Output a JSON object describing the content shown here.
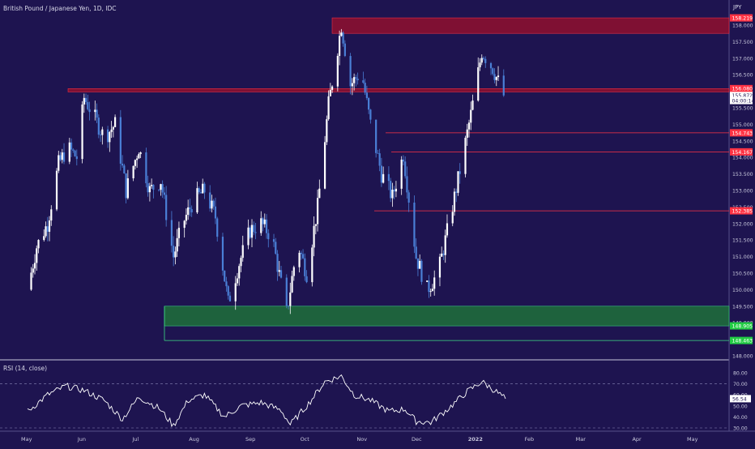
{
  "colors": {
    "background": "#1e1450",
    "candle_up": "#ffffff",
    "candle_down": "#4a7fd6",
    "rsi_line": "#ffffff",
    "resistance_zone": "#8a1030",
    "support_zone": "#1f6b3c",
    "red_line": "#ff3344",
    "green_line": "#3ddc84",
    "axis_text": "#c8c8dc"
  },
  "header": {
    "symbol_title": "British Pound / Japanese Yen, 1D, IDC",
    "currency_unit": "JPY"
  },
  "price_axis": {
    "ticks": [
      "158.000",
      "157.500",
      "157.000",
      "156.500",
      "156.000",
      "155.500",
      "155.000",
      "154.500",
      "154.000",
      "153.500",
      "153.000",
      "152.500",
      "152.000",
      "151.500",
      "151.000",
      "150.500",
      "150.000",
      "149.500",
      "149.000",
      "148.500",
      "148.000"
    ],
    "markers": [
      {
        "label": "158.219",
        "value": 158.219,
        "color": "#ff3344",
        "text": "#ffffff"
      },
      {
        "label": "156.080",
        "value": 156.08,
        "color": "#ff3344",
        "text": "#ffffff"
      },
      {
        "label": "155.872",
        "value": 155.872,
        "color": "#ffffff",
        "text": "#1e1450"
      },
      {
        "label": "04:00:14",
        "value": 155.72,
        "color": "#ffffff",
        "text": "#1e1450"
      },
      {
        "label": "154.743",
        "value": 154.743,
        "color": "#ff3344",
        "text": "#ffffff"
      },
      {
        "label": "154.167",
        "value": 154.167,
        "color": "#ff3344",
        "text": "#ffffff"
      },
      {
        "label": "152.385",
        "value": 152.385,
        "color": "#ff3344",
        "text": "#ffffff"
      },
      {
        "label": "148.905",
        "value": 148.905,
        "color": "#22cc44",
        "text": "#ffffff"
      },
      {
        "label": "148.463",
        "value": 148.463,
        "color": "#22cc44",
        "text": "#ffffff"
      }
    ]
  },
  "rsi": {
    "title": "RSI (14, close)",
    "current_label": "56.54",
    "current_value": 56.54,
    "ticks": [
      "80.00",
      "70.00",
      "60.00",
      "50.00",
      "40.00",
      "30.00"
    ]
  },
  "time_axis": {
    "labels": [
      "May",
      "Jun",
      "Jul",
      "Aug",
      "Sep",
      "Oct",
      "Nov",
      "Dec",
      "2022",
      "Feb",
      "Mar",
      "Apr",
      "May"
    ]
  },
  "chart_data": {
    "type": "candlestick",
    "title": "British Pound / Japanese Yen, 1D, IDC",
    "ylim": [
      148.0,
      158.4
    ],
    "zones": [
      {
        "kind": "resistance",
        "from": 157.75,
        "to": 158.219
      },
      {
        "kind": "resistance",
        "from": 155.98,
        "to": 156.08
      },
      {
        "kind": "support",
        "from": 148.905,
        "to": 149.5
      }
    ],
    "levels": [
      {
        "value": 154.743,
        "kind": "resistance"
      },
      {
        "value": 154.167,
        "kind": "resistance"
      },
      {
        "value": 152.385,
        "kind": "resistance"
      },
      {
        "value": 148.463,
        "kind": "support"
      }
    ],
    "close_path": [
      {
        "x": "2021-05-01",
        "y": 150.0
      },
      {
        "x": "2021-05-06",
        "y": 151.3
      },
      {
        "x": "2021-05-12",
        "y": 152.0
      },
      {
        "x": "2021-05-18",
        "y": 153.8
      },
      {
        "x": "2021-05-23",
        "y": 154.3
      },
      {
        "x": "2021-05-28",
        "y": 154.0
      },
      {
        "x": "2021-06-01",
        "y": 155.8
      },
      {
        "x": "2021-06-06",
        "y": 155.3
      },
      {
        "x": "2021-06-12",
        "y": 154.6
      },
      {
        "x": "2021-06-18",
        "y": 155.0
      },
      {
        "x": "2021-06-24",
        "y": 153.0
      },
      {
        "x": "2021-07-01",
        "y": 154.3
      },
      {
        "x": "2021-07-07",
        "y": 153.0
      },
      {
        "x": "2021-07-13",
        "y": 153.3
      },
      {
        "x": "2021-07-20",
        "y": 151.0
      },
      {
        "x": "2021-07-25",
        "y": 152.0
      },
      {
        "x": "2021-07-31",
        "y": 152.7
      },
      {
        "x": "2021-08-06",
        "y": 153.0
      },
      {
        "x": "2021-08-12",
        "y": 152.2
      },
      {
        "x": "2021-08-19",
        "y": 149.6
      },
      {
        "x": "2021-08-25",
        "y": 150.8
      },
      {
        "x": "2021-08-31",
        "y": 151.8
      },
      {
        "x": "2021-09-06",
        "y": 152.0
      },
      {
        "x": "2021-09-12",
        "y": 151.6
      },
      {
        "x": "2021-09-20",
        "y": 149.3
      },
      {
        "x": "2021-09-26",
        "y": 151.4
      },
      {
        "x": "2021-10-01",
        "y": 150.5
      },
      {
        "x": "2021-10-07",
        "y": 152.5
      },
      {
        "x": "2021-10-13",
        "y": 155.6
      },
      {
        "x": "2021-10-20",
        "y": 158.0
      },
      {
        "x": "2021-10-25",
        "y": 156.2
      },
      {
        "x": "2021-10-31",
        "y": 156.6
      },
      {
        "x": "2021-11-05",
        "y": 155.0
      },
      {
        "x": "2021-11-11",
        "y": 153.5
      },
      {
        "x": "2021-11-17",
        "y": 152.8
      },
      {
        "x": "2021-11-23",
        "y": 154.1
      },
      {
        "x": "2021-11-30",
        "y": 151.0
      },
      {
        "x": "2021-12-06",
        "y": 150.0
      },
      {
        "x": "2021-12-12",
        "y": 150.5
      },
      {
        "x": "2021-12-18",
        "y": 152.0
      },
      {
        "x": "2021-12-24",
        "y": 153.6
      },
      {
        "x": "2021-12-30",
        "y": 155.3
      },
      {
        "x": "2022-01-05",
        "y": 157.2
      },
      {
        "x": "2022-01-11",
        "y": 156.7
      },
      {
        "x": "2022-01-17",
        "y": 155.872
      }
    ],
    "rsi_path": [
      {
        "x": "2021-05-01",
        "y": 45
      },
      {
        "x": "2021-05-12",
        "y": 60
      },
      {
        "x": "2021-05-22",
        "y": 68
      },
      {
        "x": "2021-06-01",
        "y": 64
      },
      {
        "x": "2021-06-12",
        "y": 55
      },
      {
        "x": "2021-06-22",
        "y": 38
      },
      {
        "x": "2021-07-01",
        "y": 58
      },
      {
        "x": "2021-07-12",
        "y": 48
      },
      {
        "x": "2021-07-20",
        "y": 32
      },
      {
        "x": "2021-07-28",
        "y": 55
      },
      {
        "x": "2021-08-06",
        "y": 60
      },
      {
        "x": "2021-08-17",
        "y": 40
      },
      {
        "x": "2021-08-26",
        "y": 50
      },
      {
        "x": "2021-09-06",
        "y": 53
      },
      {
        "x": "2021-09-17",
        "y": 46
      },
      {
        "x": "2021-09-22",
        "y": 33
      },
      {
        "x": "2021-10-02",
        "y": 52
      },
      {
        "x": "2021-10-11",
        "y": 72
      },
      {
        "x": "2021-10-20",
        "y": 77
      },
      {
        "x": "2021-10-27",
        "y": 60
      },
      {
        "x": "2021-11-05",
        "y": 55
      },
      {
        "x": "2021-11-15",
        "y": 45
      },
      {
        "x": "2021-11-24",
        "y": 47
      },
      {
        "x": "2021-11-30",
        "y": 36
      },
      {
        "x": "2021-12-08",
        "y": 35
      },
      {
        "x": "2021-12-18",
        "y": 48
      },
      {
        "x": "2021-12-28",
        "y": 63
      },
      {
        "x": "2022-01-05",
        "y": 72
      },
      {
        "x": "2022-01-12",
        "y": 64
      },
      {
        "x": "2022-01-18",
        "y": 56.54
      }
    ]
  }
}
